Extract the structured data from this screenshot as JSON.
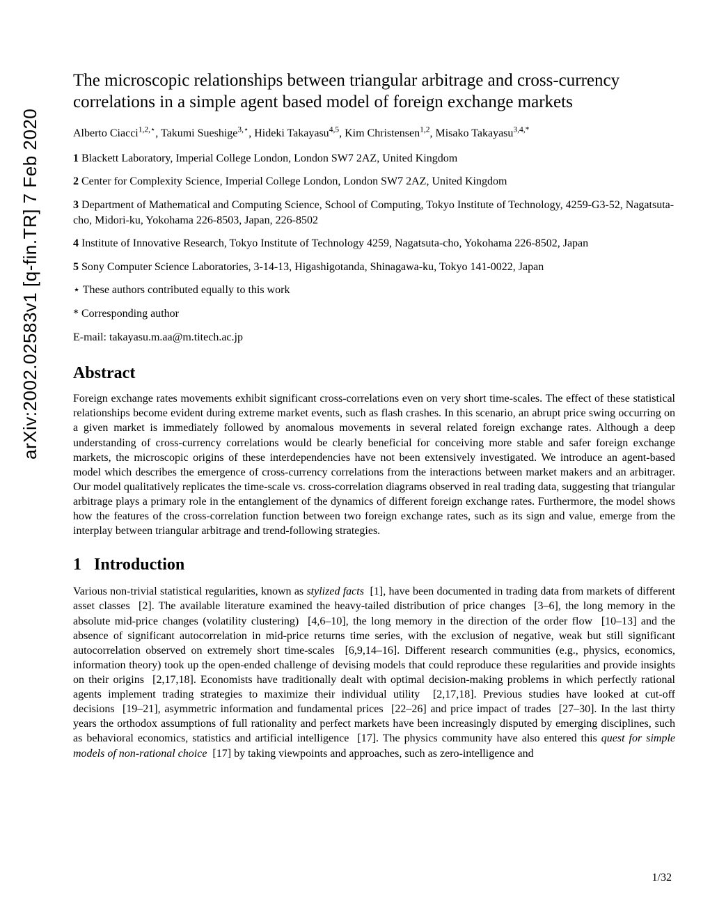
{
  "arxiv": {
    "id": "arXiv:2002.02583v1",
    "category": "[q-fin.TR]",
    "date": "7 Feb 2020"
  },
  "title": "The microscopic relationships between triangular arbitrage and cross-currency correlations in a simple agent based model of foreign exchange markets",
  "authors_html": "Alberto Ciacci<sup>1,2,⋆</sup>, Takumi Sueshige<sup>3,⋆</sup>, Hideki Takayasu<sup>4,5</sup>, Kim Christensen<sup>1,2</sup>, Misako Takayasu<sup>3,4,*</sup>",
  "affiliations": [
    {
      "num": "1",
      "text": "Blackett Laboratory, Imperial College London, London SW7 2AZ, United Kingdom"
    },
    {
      "num": "2",
      "text": "Center for Complexity Science, Imperial College London, London SW7 2AZ, United Kingdom"
    },
    {
      "num": "3",
      "text": "Department of Mathematical and Computing Science, School of Computing, Tokyo Institute of Technology, 4259-G3-52, Nagatsuta-cho, Midori-ku, Yokohama 226-8503, Japan, 226-8502"
    },
    {
      "num": "4",
      "text": "Institute of Innovative Research, Tokyo Institute of Technology 4259, Nagatsuta-cho, Yokohama 226-8502, Japan"
    },
    {
      "num": "5",
      "text": "Sony Computer Science Laboratories, 3-14-13, Higashigotanda, Shinagawa-ku, Tokyo 141-0022, Japan"
    }
  ],
  "equal_contrib": "⋆ These authors contributed equally to this work",
  "corresponding": "* Corresponding author",
  "email": "E-mail: takayasu.m.aa@m.titech.ac.jp",
  "abstract_heading": "Abstract",
  "abstract": "Foreign exchange rates movements exhibit significant cross-correlations even on very short time-scales. The effect of these statistical relationships become evident during extreme market events, such as flash crashes. In this scenario, an abrupt price swing occurring on a given market is immediately followed by anomalous movements in several related foreign exchange rates. Although a deep understanding of cross-currency correlations would be clearly beneficial for conceiving more stable and safer foreign exchange markets, the microscopic origins of these interdependencies have not been extensively investigated. We introduce an agent-based model which describes the emergence of cross-currency correlations from the interactions between market makers and an arbitrager. Our model qualitatively replicates the time-scale vs. cross-correlation diagrams observed in real trading data, suggesting that triangular arbitrage plays a primary role in the entanglement of the dynamics of different foreign exchange rates. Furthermore, the model shows how the features of the cross-correlation function between two foreign exchange rates, such as its sign and value, emerge from the interplay between triangular arbitrage and trend-following strategies.",
  "section1_num": "1",
  "section1_title": "Introduction",
  "intro_html": "Various non-trivial statistical regularities, known as <span class=\"italic\">stylized facts</span>&nbsp;&nbsp;[1], have been documented in trading data from markets of different asset classes&nbsp;&nbsp;[2]. The available literature examined the heavy-tailed distribution of price changes &nbsp;[3–6], the long memory in the absolute mid-price changes (volatility clustering)&nbsp;&nbsp;[4,6–10], the long memory in the direction of the order flow&nbsp;&nbsp;[10–13] and the absence of significant autocorrelation in mid-price returns time series, with the exclusion of negative, weak but still significant autocorrelation observed on extremely short time-scales&nbsp;&nbsp;[6,9,14–16]. Different research communities (e.g., physics, economics, information theory) took up the open-ended challenge of devising models that could reproduce these regularities and provide insights on their origins&nbsp;&nbsp;[2,17,18]. Economists have traditionally dealt with optimal decision-making problems in which perfectly rational agents implement trading strategies to maximize their individual utility&nbsp;&nbsp;[2,17,18]. Previous studies have looked at cut-off decisions&nbsp;&nbsp;[19–21], asymmetric information and fundamental prices&nbsp;&nbsp;[22–26] and price impact of trades&nbsp;&nbsp;[27–30]. In the last thirty years the orthodox assumptions of full rationality and perfect markets have been increasingly disputed by emerging disciplines, such as behavioral economics, statistics and artificial intelligence&nbsp;&nbsp;[17]. The physics community have also entered this <span class=\"italic\">quest for simple models of non-rational choice</span>&nbsp;&nbsp;[17] by taking viewpoints and approaches, such as zero-intelligence and",
  "page_number": "1/32"
}
